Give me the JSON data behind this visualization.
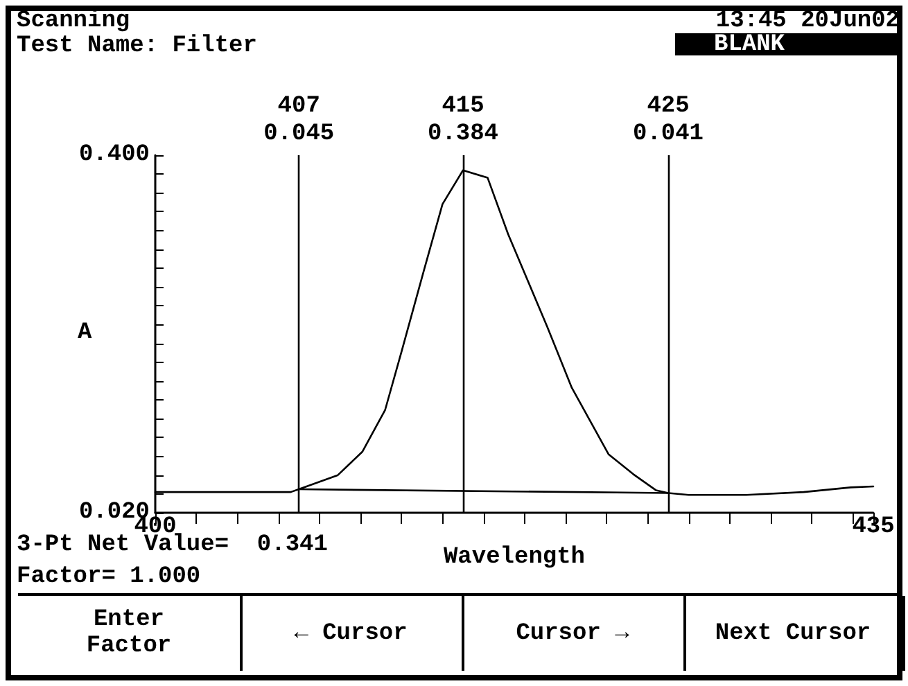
{
  "chart_data": {
    "type": "line",
    "title": "Scanning",
    "subtitle": "Test Name: Filter",
    "xlabel": "Wavelength",
    "ylabel": "A",
    "x": [
      400,
      406.6,
      407,
      408.9,
      410.1,
      411.2,
      412,
      413.1,
      414,
      415,
      416.2,
      417.2,
      419.1,
      420.3,
      422.1,
      423.3,
      424.4,
      425,
      426,
      428.8,
      431.6,
      433.9,
      435
    ],
    "series": [
      {
        "color": "#000000",
        "values": [
          0.042,
          0.042,
          0.045,
          0.06,
          0.085,
          0.129,
          0.191,
          0.278,
          0.348,
          0.384,
          0.376,
          0.316,
          0.218,
          0.153,
          0.082,
          0.061,
          0.044,
          0.041,
          0.039,
          0.039,
          0.042,
          0.047,
          0.048
        ]
      },
      {
        "color": "#000000",
        "x": [
          407,
          425
        ],
        "values": [
          0.045,
          0.041
        ]
      }
    ],
    "xlim": [
      400,
      435
    ],
    "ylim": [
      0.02,
      0.4
    ],
    "xticks": [
      {
        "value": 400,
        "label": "400"
      },
      {
        "value": 402,
        "label": null
      },
      {
        "value": 404,
        "label": null
      },
      {
        "value": 406,
        "label": null
      },
      {
        "value": 408,
        "label": null
      },
      {
        "value": 410,
        "label": null
      },
      {
        "value": 412,
        "label": null
      },
      {
        "value": 414,
        "label": null
      },
      {
        "value": 416,
        "label": null
      },
      {
        "value": 418,
        "label": null
      },
      {
        "value": 420,
        "label": null
      },
      {
        "value": 422,
        "label": null
      },
      {
        "value": 424,
        "label": null
      },
      {
        "value": 426,
        "label": null
      },
      {
        "value": 428,
        "label": null
      },
      {
        "value": 430,
        "label": null
      },
      {
        "value": 432,
        "label": null
      },
      {
        "value": 434,
        "label": null
      },
      {
        "value": 435,
        "label": "435"
      }
    ],
    "yticks": [
      {
        "value": 0.02,
        "label": "0.020"
      },
      {
        "value": 0.04,
        "label": null
      },
      {
        "value": 0.06,
        "label": null
      },
      {
        "value": 0.08,
        "label": null
      },
      {
        "value": 0.1,
        "label": null
      },
      {
        "value": 0.12,
        "label": null
      },
      {
        "value": 0.14,
        "label": null
      },
      {
        "value": 0.16,
        "label": null
      },
      {
        "value": 0.18,
        "label": null
      },
      {
        "value": 0.2,
        "label": null
      },
      {
        "value": 0.22,
        "label": null
      },
      {
        "value": 0.24,
        "label": null
      },
      {
        "value": 0.26,
        "label": null
      },
      {
        "value": 0.28,
        "label": null
      },
      {
        "value": 0.3,
        "label": null
      },
      {
        "value": 0.32,
        "label": null
      },
      {
        "value": 0.34,
        "label": null
      },
      {
        "value": 0.36,
        "label": null
      },
      {
        "value": 0.38,
        "label": null
      },
      {
        "value": 0.4,
        "label": "0.400"
      }
    ],
    "ref_lines": [
      {
        "axis": "x",
        "value": 407,
        "label": "407"
      },
      {
        "axis": "x",
        "value": 415,
        "label": "415"
      },
      {
        "axis": "x",
        "value": 425,
        "label": "425"
      }
    ],
    "annotations": [
      "0.045",
      "0.384",
      "0.041",
      "13:45 20Jun02",
      "BLANK",
      "3-Pt Net Value=  0.341",
      "Factor= 1.000",
      "Enter Factor",
      "← Cursor",
      "Cursor →",
      "Next Cursor"
    ],
    "line_style": "solid",
    "grid": false
  }
}
